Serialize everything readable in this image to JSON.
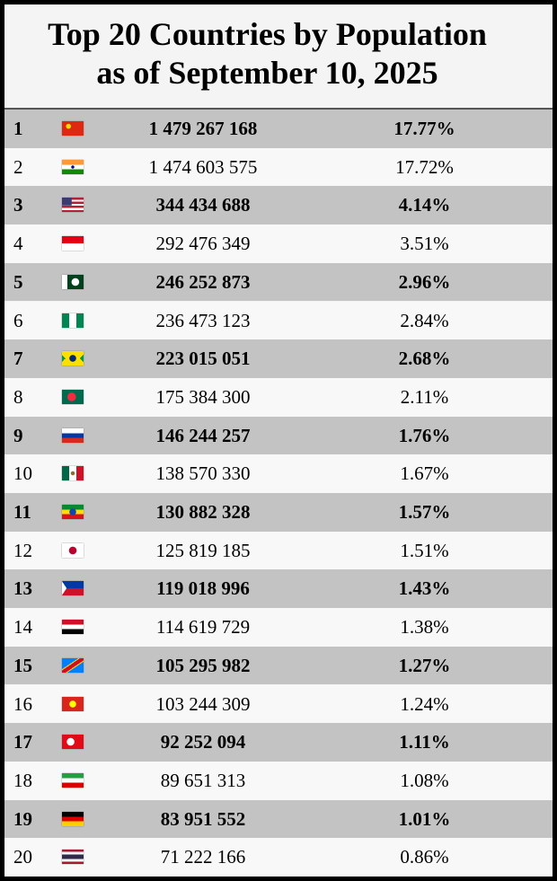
{
  "header": {
    "title": [
      "Top 20 Countries by Population",
      "as of September 10, 2025"
    ]
  },
  "table": {
    "rows": [
      [
        1,
        "1 479 267 168",
        "17.77%"
      ],
      [
        2,
        "1 474 603 575",
        "17.72%"
      ],
      [
        3,
        "344 434 688",
        "4.14%"
      ],
      [
        4,
        "292 476 349",
        "3.51%"
      ],
      [
        5,
        "246 252 873",
        "2.96%"
      ],
      [
        6,
        "236 473 123",
        "2.84%"
      ],
      [
        7,
        "223 015 051",
        "2.68%"
      ],
      [
        8,
        "175 384 300",
        "2.11%"
      ],
      [
        9,
        "146 244 257",
        "1.76%"
      ],
      [
        10,
        "138 570 330",
        "1.67%"
      ],
      [
        11,
        "130 882 328",
        "1.57%"
      ],
      [
        12,
        "125 819 185",
        "1.51%"
      ],
      [
        13,
        "119 018 996",
        "1.43%"
      ],
      [
        14,
        "114 619 729",
        "1.38%"
      ],
      [
        15,
        "105 295 982",
        "1.27%"
      ],
      [
        16,
        "103 244 309",
        "1.24%"
      ],
      [
        17,
        "92 252 094",
        "1.11%"
      ],
      [
        18,
        "89 651 313",
        "1.08%"
      ],
      [
        19,
        "83 951 552",
        "1.01%"
      ],
      [
        20,
        "71 222 166",
        "0.86%"
      ]
    ]
  }
}
